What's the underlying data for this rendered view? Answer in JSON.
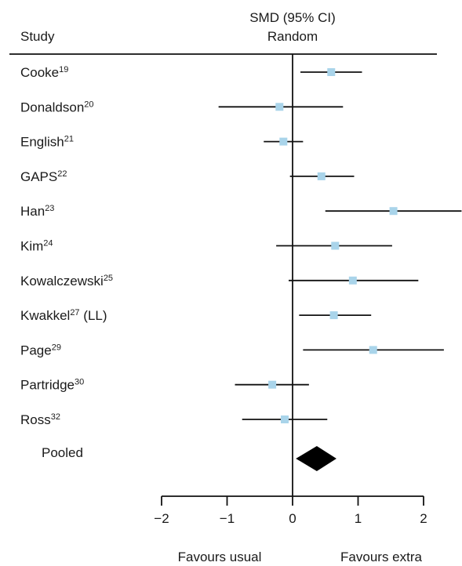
{
  "header": {
    "study_label": "Study",
    "measure_line1": "SMD (95% CI)",
    "measure_line2": "Random"
  },
  "colors": {
    "marker": "#a9d4ea",
    "line": "#111111",
    "pooled": "#000000"
  },
  "chart_data": {
    "type": "forest",
    "xlim": [
      -2,
      2
    ],
    "xticks": [
      -2,
      -1,
      0,
      1,
      2
    ],
    "xtick_labels": [
      "−2",
      "−1",
      "0",
      "1",
      "2"
    ],
    "xlabel_left": "Favours usual",
    "xlabel_right": "Favours extra",
    "studies": [
      {
        "name": "Cooke",
        "ref": "19",
        "smd": 0.59,
        "lo": 0.12,
        "hi": 1.06
      },
      {
        "name": "Donaldson",
        "ref": "20",
        "smd": -0.2,
        "lo": -1.13,
        "hi": 0.77
      },
      {
        "name": "English",
        "ref": "21",
        "smd": -0.14,
        "lo": -0.44,
        "hi": 0.16
      },
      {
        "name": "GAPS",
        "ref": "22",
        "smd": 0.44,
        "lo": -0.04,
        "hi": 0.94
      },
      {
        "name": "Han",
        "ref": "23",
        "smd": 1.54,
        "lo": 0.5,
        "hi": 2.58
      },
      {
        "name": "Kim",
        "ref": "24",
        "smd": 0.65,
        "lo": -0.25,
        "hi": 1.52
      },
      {
        "name": "Kowalczewski",
        "ref": "25",
        "smd": 0.92,
        "lo": -0.06,
        "hi": 1.92
      },
      {
        "name": "Kwakkel",
        "ref": "27",
        "suffix": " (LL)",
        "smd": 0.63,
        "lo": 0.1,
        "hi": 1.2
      },
      {
        "name": "Page",
        "ref": "29",
        "smd": 1.23,
        "lo": 0.16,
        "hi": 2.31
      },
      {
        "name": "Partridge",
        "ref": "30",
        "smd": -0.31,
        "lo": -0.88,
        "hi": 0.25
      },
      {
        "name": "Ross",
        "ref": "32",
        "smd": -0.12,
        "lo": -0.77,
        "hi": 0.53
      }
    ],
    "pooled": {
      "label": "Pooled",
      "smd": 0.37,
      "lo": 0.05,
      "hi": 0.67
    }
  }
}
